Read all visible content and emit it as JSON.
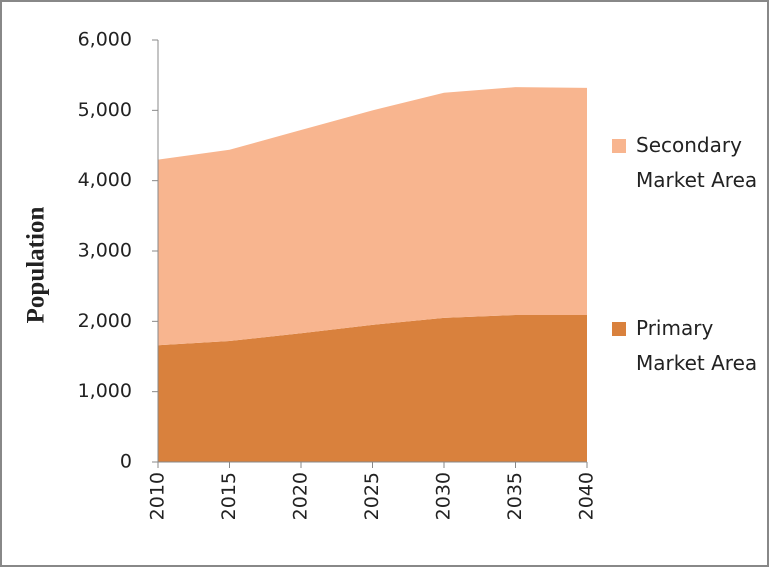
{
  "chart_data": {
    "type": "area",
    "stacked": true,
    "y_label": "Population",
    "x": [
      2010,
      2015,
      2020,
      2025,
      2030,
      2035,
      2040
    ],
    "series": [
      {
        "name": "Primary Market Area",
        "color": "#d9813d",
        "values": [
          1660,
          1720,
          1830,
          1950,
          2050,
          2090,
          2090
        ]
      },
      {
        "name": "Secondary Market Area",
        "color": "#f8b58f",
        "values": [
          2640,
          2720,
          2890,
          3050,
          3200,
          3240,
          3230
        ]
      }
    ],
    "xlim": [
      2010,
      2040
    ],
    "xticks": [
      2010,
      2015,
      2020,
      2025,
      2030,
      2035,
      2040
    ],
    "ylim": [
      0,
      6000
    ],
    "yticks": [
      0,
      {
        "value": 1000,
        "label": "1,000"
      },
      {
        "value": 2000,
        "label": "2,000"
      },
      {
        "value": 3000,
        "label": "3,000"
      },
      {
        "value": 4000,
        "label": "4,000"
      },
      {
        "value": 5000,
        "label": "5,000"
      },
      {
        "value": 6000,
        "label": "6,000"
      }
    ],
    "grid": false,
    "legend": "right"
  }
}
